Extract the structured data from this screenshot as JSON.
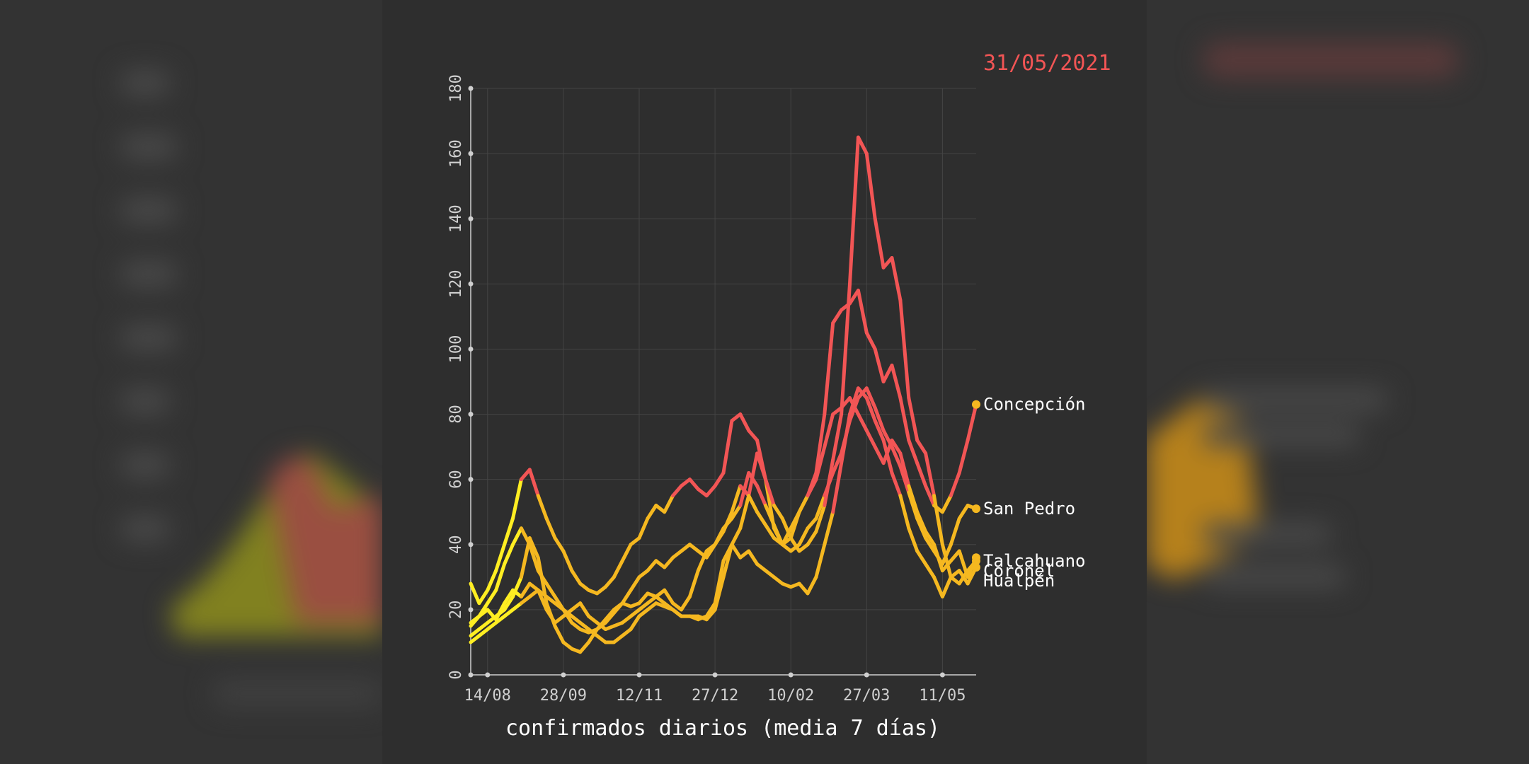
{
  "date_label": "31/05/2021",
  "colors": {
    "background": "#333333",
    "panel": "#2e2e2e",
    "grid": "#444444",
    "red": "#f25555",
    "amber": "#f5b820",
    "yellow": "#ffee22",
    "axis": "#cfcfcf",
    "text": "#ffffff"
  },
  "chart_data": {
    "type": "line",
    "title": "",
    "xlabel": "confirmados diarios (media 7 días)",
    "ylabel": "",
    "ylim": [
      0,
      180
    ],
    "y_ticks": [
      0,
      20,
      40,
      60,
      80,
      100,
      120,
      140,
      160,
      180
    ],
    "x_range": [
      "2020-08-04",
      "2021-05-31"
    ],
    "x_ticks": [
      {
        "date": "2020-08-14",
        "label": "14/08"
      },
      {
        "date": "2020-09-28",
        "label": "28/09"
      },
      {
        "date": "2020-11-12",
        "label": "12/11"
      },
      {
        "date": "2020-12-27",
        "label": "27/12"
      },
      {
        "date": "2021-02-10",
        "label": "10/02"
      },
      {
        "date": "2021-03-27",
        "label": "27/03"
      },
      {
        "date": "2021-05-11",
        "label": "11/05"
      }
    ],
    "grid": true,
    "legend": "end-labels",
    "series": [
      {
        "name": "Concepción",
        "x": [
          "2020-08-04",
          "2020-08-09",
          "2020-08-14",
          "2020-08-19",
          "2020-08-24",
          "2020-08-29",
          "2020-09-03",
          "2020-09-08",
          "2020-09-13",
          "2020-09-18",
          "2020-09-23",
          "2020-09-28",
          "2020-10-03",
          "2020-10-08",
          "2020-10-13",
          "2020-10-18",
          "2020-10-23",
          "2020-10-28",
          "2020-11-02",
          "2020-11-07",
          "2020-11-12",
          "2020-11-17",
          "2020-11-22",
          "2020-11-27",
          "2020-12-02",
          "2020-12-07",
          "2020-12-12",
          "2020-12-17",
          "2020-12-22",
          "2020-12-27",
          "2021-01-01",
          "2021-01-06",
          "2021-01-11",
          "2021-01-16",
          "2021-01-21",
          "2021-01-26",
          "2021-01-31",
          "2021-02-05",
          "2021-02-10",
          "2021-02-15",
          "2021-02-20",
          "2021-02-25",
          "2021-03-02",
          "2021-03-07",
          "2021-03-12",
          "2021-03-17",
          "2021-03-22",
          "2021-03-27",
          "2021-04-01",
          "2021-04-06",
          "2021-04-11",
          "2021-04-16",
          "2021-04-21",
          "2021-04-26",
          "2021-05-01",
          "2021-05-06",
          "2021-05-11",
          "2021-05-16",
          "2021-05-21",
          "2021-05-26",
          "2021-05-31"
        ],
        "values": [
          28,
          22,
          26,
          32,
          40,
          48,
          60,
          63,
          55,
          48,
          42,
          38,
          32,
          28,
          26,
          25,
          27,
          30,
          35,
          40,
          42,
          48,
          52,
          50,
          55,
          58,
          60,
          57,
          55,
          58,
          62,
          78,
          80,
          75,
          72,
          60,
          45,
          40,
          42,
          50,
          55,
          62,
          80,
          108,
          112,
          114,
          118,
          105,
          100,
          90,
          95,
          85,
          72,
          65,
          58,
          52,
          50,
          55,
          62,
          72,
          83
        ]
      },
      {
        "name": "San Pedro",
        "x": [
          "2020-08-04",
          "2020-08-09",
          "2020-08-14",
          "2020-08-19",
          "2020-08-24",
          "2020-08-29",
          "2020-09-03",
          "2020-09-08",
          "2020-09-13",
          "2020-09-18",
          "2020-09-23",
          "2020-09-28",
          "2020-10-03",
          "2020-10-08",
          "2020-10-13",
          "2020-10-18",
          "2020-10-23",
          "2020-10-28",
          "2020-11-02",
          "2020-11-07",
          "2020-11-12",
          "2020-11-17",
          "2020-11-22",
          "2020-11-27",
          "2020-12-02",
          "2020-12-07",
          "2020-12-12",
          "2020-12-17",
          "2020-12-22",
          "2020-12-27",
          "2021-01-01",
          "2021-01-06",
          "2021-01-11",
          "2021-01-16",
          "2021-01-21",
          "2021-01-26",
          "2021-01-31",
          "2021-02-05",
          "2021-02-10",
          "2021-02-15",
          "2021-02-20",
          "2021-02-25",
          "2021-03-02",
          "2021-03-07",
          "2021-03-12",
          "2021-03-17",
          "2021-03-22",
          "2021-03-27",
          "2021-04-01",
          "2021-04-06",
          "2021-04-11",
          "2021-04-16",
          "2021-04-21",
          "2021-04-26",
          "2021-05-01",
          "2021-05-06",
          "2021-05-11",
          "2021-05-16",
          "2021-05-21",
          "2021-05-26",
          "2021-05-31"
        ],
        "values": [
          16,
          18,
          22,
          26,
          34,
          40,
          45,
          40,
          32,
          28,
          24,
          20,
          16,
          14,
          13,
          14,
          16,
          19,
          22,
          26,
          30,
          32,
          35,
          33,
          36,
          38,
          40,
          38,
          36,
          40,
          45,
          48,
          52,
          62,
          58,
          52,
          46,
          40,
          38,
          40,
          45,
          48,
          55,
          62,
          68,
          78,
          85,
          88,
          82,
          75,
          70,
          64,
          56,
          48,
          42,
          38,
          34,
          40,
          48,
          52,
          51
        ]
      },
      {
        "name": "Talcahuano",
        "x": [
          "2020-08-04",
          "2020-08-09",
          "2020-08-14",
          "2020-08-19",
          "2020-08-24",
          "2020-08-29",
          "2020-09-03",
          "2020-09-08",
          "2020-09-13",
          "2020-09-18",
          "2020-09-23",
          "2020-09-28",
          "2020-10-03",
          "2020-10-08",
          "2020-10-13",
          "2020-10-18",
          "2020-10-23",
          "2020-10-28",
          "2020-11-02",
          "2020-11-07",
          "2020-11-12",
          "2020-11-17",
          "2020-11-22",
          "2020-11-27",
          "2020-12-02",
          "2020-12-07",
          "2020-12-12",
          "2020-12-17",
          "2020-12-22",
          "2020-12-27",
          "2021-01-01",
          "2021-01-06",
          "2021-01-11",
          "2021-01-16",
          "2021-01-21",
          "2021-01-26",
          "2021-01-31",
          "2021-02-05",
          "2021-02-10",
          "2021-02-15",
          "2021-02-20",
          "2021-02-25",
          "2021-03-02",
          "2021-03-07",
          "2021-03-12",
          "2021-03-17",
          "2021-03-22",
          "2021-03-27",
          "2021-04-01",
          "2021-04-06",
          "2021-04-11",
          "2021-04-16",
          "2021-04-21",
          "2021-04-26",
          "2021-05-01",
          "2021-05-06",
          "2021-05-11",
          "2021-05-16",
          "2021-05-21",
          "2021-05-26",
          "2021-05-31"
        ],
        "values": [
          12,
          14,
          16,
          18,
          20,
          24,
          30,
          42,
          36,
          22,
          15,
          10,
          8,
          7,
          10,
          14,
          17,
          20,
          22,
          21,
          22,
          25,
          24,
          22,
          20,
          18,
          18,
          17,
          18,
          22,
          35,
          40,
          45,
          55,
          68,
          60,
          52,
          48,
          42,
          38,
          40,
          44,
          52,
          66,
          80,
          120,
          165,
          160,
          140,
          125,
          128,
          115,
          85,
          72,
          68,
          55,
          40,
          30,
          28,
          32,
          35
        ]
      },
      {
        "name": "Coronel",
        "x": [
          "2020-08-04",
          "2020-08-09",
          "2020-08-14",
          "2020-08-19",
          "2020-08-24",
          "2020-08-29",
          "2020-09-03",
          "2020-09-08",
          "2020-09-13",
          "2020-09-18",
          "2020-09-23",
          "2020-09-28",
          "2020-10-03",
          "2020-10-08",
          "2020-10-13",
          "2020-10-18",
          "2020-10-23",
          "2020-10-28",
          "2020-11-02",
          "2020-11-07",
          "2020-11-12",
          "2020-11-17",
          "2020-11-22",
          "2020-11-27",
          "2020-12-02",
          "2020-12-07",
          "2020-12-12",
          "2020-12-17",
          "2020-12-22",
          "2020-12-27",
          "2021-01-01",
          "2021-01-06",
          "2021-01-11",
          "2021-01-16",
          "2021-01-21",
          "2021-01-26",
          "2021-01-31",
          "2021-02-05",
          "2021-02-10",
          "2021-02-15",
          "2021-02-20",
          "2021-02-25",
          "2021-03-02",
          "2021-03-07",
          "2021-03-12",
          "2021-03-17",
          "2021-03-22",
          "2021-03-27",
          "2021-04-01",
          "2021-04-06",
          "2021-04-11",
          "2021-04-16",
          "2021-04-21",
          "2021-04-26",
          "2021-05-01",
          "2021-05-06",
          "2021-05-11",
          "2021-05-16",
          "2021-05-21",
          "2021-05-26",
          "2021-05-31"
        ],
        "values": [
          15,
          18,
          20,
          17,
          22,
          26,
          24,
          28,
          26,
          20,
          16,
          18,
          20,
          22,
          18,
          16,
          14,
          15,
          16,
          18,
          20,
          22,
          24,
          26,
          22,
          20,
          24,
          32,
          38,
          40,
          44,
          50,
          58,
          55,
          50,
          46,
          42,
          40,
          45,
          50,
          55,
          60,
          70,
          80,
          82,
          85,
          80,
          75,
          70,
          65,
          72,
          68,
          58,
          50,
          44,
          40,
          32,
          35,
          38,
          30,
          36
        ]
      },
      {
        "name": "Hualpén",
        "x": [
          "2020-08-04",
          "2020-08-09",
          "2020-08-14",
          "2020-08-19",
          "2020-08-24",
          "2020-08-29",
          "2020-09-03",
          "2020-09-08",
          "2020-09-13",
          "2020-09-18",
          "2020-09-23",
          "2020-09-28",
          "2020-10-03",
          "2020-10-08",
          "2020-10-13",
          "2020-10-18",
          "2020-10-23",
          "2020-10-28",
          "2020-11-02",
          "2020-11-07",
          "2020-11-12",
          "2020-11-17",
          "2020-11-22",
          "2020-11-27",
          "2020-12-02",
          "2020-12-07",
          "2020-12-12",
          "2020-12-17",
          "2020-12-22",
          "2020-12-27",
          "2021-01-01",
          "2021-01-06",
          "2021-01-11",
          "2021-01-16",
          "2021-01-21",
          "2021-01-26",
          "2021-01-31",
          "2021-02-05",
          "2021-02-10",
          "2021-02-15",
          "2021-02-20",
          "2021-02-25",
          "2021-03-02",
          "2021-03-07",
          "2021-03-12",
          "2021-03-17",
          "2021-03-22",
          "2021-03-27",
          "2021-04-01",
          "2021-04-06",
          "2021-04-11",
          "2021-04-16",
          "2021-04-21",
          "2021-04-26",
          "2021-05-01",
          "2021-05-06",
          "2021-05-11",
          "2021-05-16",
          "2021-05-21",
          "2021-05-26",
          "2021-05-31"
        ],
        "values": [
          10,
          12,
          14,
          16,
          18,
          20,
          22,
          24,
          26,
          24,
          22,
          20,
          18,
          16,
          14,
          12,
          10,
          10,
          12,
          14,
          18,
          20,
          22,
          21,
          20,
          18,
          18,
          18,
          17,
          20,
          30,
          40,
          36,
          38,
          34,
          32,
          30,
          28,
          27,
          28,
          25,
          30,
          40,
          50,
          65,
          80,
          88,
          85,
          78,
          72,
          62,
          55,
          45,
          38,
          34,
          30,
          24,
          30,
          32,
          28,
          33
        ]
      }
    ]
  }
}
